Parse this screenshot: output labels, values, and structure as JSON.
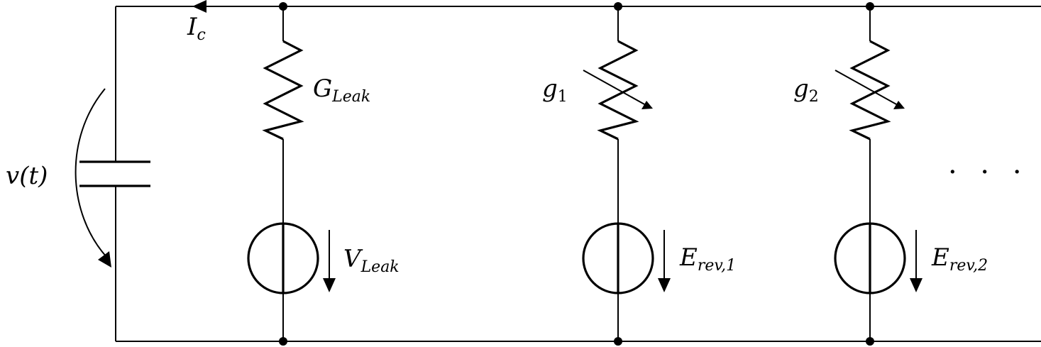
{
  "labels": {
    "capacitor_voltage": "v(t)",
    "capacitor_current": {
      "main": "I",
      "sub": "c"
    },
    "leak_conductance": {
      "main": "G",
      "sub": "Leak"
    },
    "conductance_1": {
      "main": "g",
      "sub": "1"
    },
    "conductance_2": {
      "main": "g",
      "sub": "2"
    },
    "leak_source": {
      "main": "V",
      "sub": "Leak"
    },
    "source_1": {
      "main": "E",
      "sub": "rev,1"
    },
    "source_2": {
      "main": "E",
      "sub": "rev,2"
    },
    "ellipsis": "· · ·"
  }
}
